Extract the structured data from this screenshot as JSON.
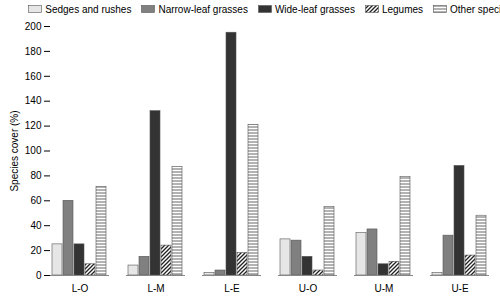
{
  "chart_data": {
    "type": "bar",
    "y_label": "Species cover (%)",
    "categories": [
      "L-O",
      "L-M",
      "L-E",
      "U-O",
      "U-M",
      "U-E"
    ],
    "series": [
      {
        "name": "Sedges and rushes",
        "color": "#e6e6e6",
        "values": [
          25,
          8,
          2,
          29,
          34,
          2
        ]
      },
      {
        "name": "Narrow-leaf grasses",
        "color": "#808080",
        "values": [
          60,
          15,
          4,
          28,
          37,
          32
        ]
      },
      {
        "name": "Wide-leaf grasses",
        "color": "#333333",
        "values": [
          25,
          132,
          195,
          15,
          9,
          88
        ]
      },
      {
        "name": "Legumes",
        "color": "#222222",
        "values": [
          9,
          24,
          18,
          4,
          11,
          16
        ]
      },
      {
        "name": "Other species",
        "color": "#666666",
        "values": [
          71,
          87,
          121,
          55,
          79,
          48
        ]
      }
    ],
    "ylim": [
      0,
      200
    ],
    "yticks": [
      0,
      20,
      40,
      60,
      80,
      100,
      120,
      140,
      160,
      180,
      200
    ],
    "grid": false,
    "legend": "top"
  }
}
